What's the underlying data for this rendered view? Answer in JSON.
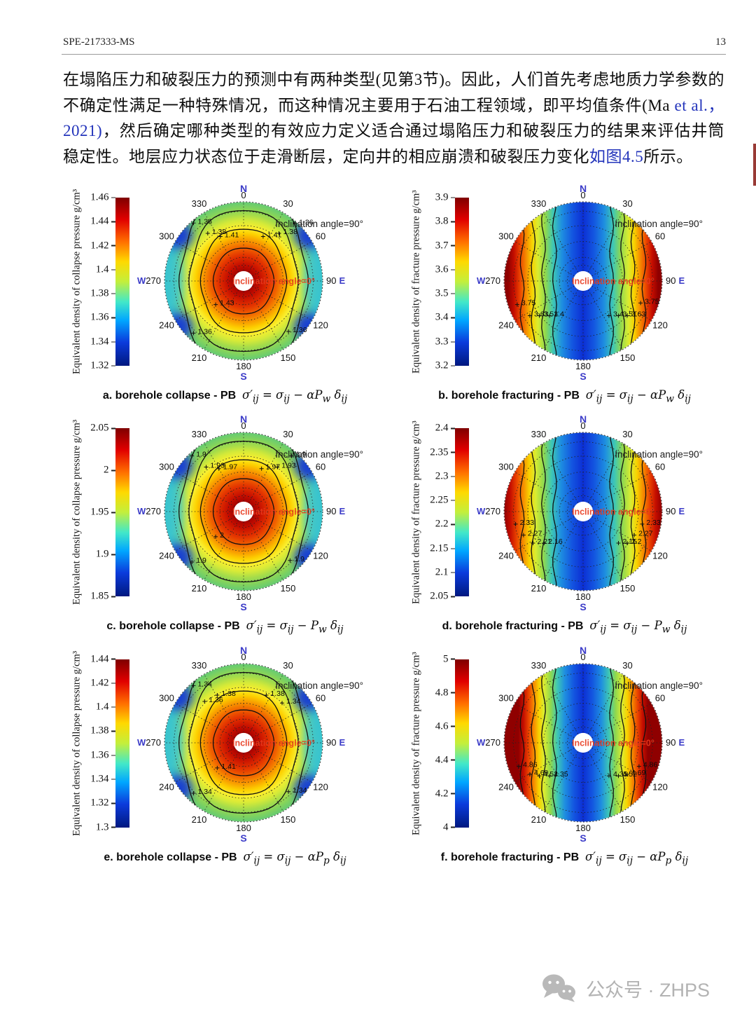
{
  "page": {
    "doc_id": "SPE-217333-MS",
    "page_number": "13"
  },
  "paragraph": {
    "segments": [
      {
        "text": "在塌陷压力和破裂压力的预测中有两种类型(见第3节)。因此，人们首先考虑地质力学参数的不确定性满足一种特殊情况，而这种情况主要用于石油工程领域，即平均值条件(Ma ",
        "link": false
      },
      {
        "text": "et al.， 2021)",
        "link": true
      },
      {
        "text": "，然后确定哪种类型的有效应力定义适合通过塌陷压力和破裂压力的结果来评估井筒稳定性。地层应力状态位于走滑断层，定向井的相应崩溃和破裂压力变化",
        "link": false
      },
      {
        "text": "如图4.5",
        "link": true
      },
      {
        "text": "所示。",
        "link": false
      }
    ]
  },
  "footer": {
    "wechat_label": "公众号 · ZHPS"
  },
  "colors": {
    "link_blue": "#2334bb",
    "compass_blue": "#3b3bc8",
    "center_red": "#e8391d",
    "cyan_lens": "#2ec2e6",
    "blue_blob": "#1838d6",
    "jet_bar": [
      "#7f0000 0%",
      "#e10000 13%",
      "#ff6d00 26%",
      "#ffd900 38%",
      "#c3ef3c 50%",
      "#42e8c8 62%",
      "#00a6ff 73%",
      "#0b3bdc 86%",
      "#00187f 100%"
    ],
    "collapse_stops": [
      [
        "0%",
        "#700000"
      ],
      [
        "10%",
        "#9c0000"
      ],
      [
        "20%",
        "#c40d00"
      ],
      [
        "32%",
        "#e23100"
      ],
      [
        "42%",
        "#f06000"
      ],
      [
        "52%",
        "#f89c00"
      ],
      [
        "60%",
        "#fdd000"
      ],
      [
        "68%",
        "#f9ee2e"
      ],
      [
        "76%",
        "#d6ea38"
      ],
      [
        "84%",
        "#a5dc4a"
      ],
      [
        "92%",
        "#83d35c"
      ],
      [
        "100%",
        "#63ca74"
      ]
    ],
    "fracture_stops": [
      [
        "0%",
        "#8f0000"
      ],
      [
        "4%",
        "#c40d00"
      ],
      [
        "8%",
        "#ea4400"
      ],
      [
        "12%",
        "#f58a00"
      ],
      [
        "16%",
        "#f8d200"
      ],
      [
        "20%",
        "#d8ec32"
      ],
      [
        "25%",
        "#8fd84e"
      ],
      [
        "30%",
        "#3fc8b4"
      ],
      [
        "36%",
        "#1e8ee0"
      ],
      [
        "43%",
        "#1355e0"
      ],
      [
        "50%",
        "#0c2fd4"
      ],
      [
        "57%",
        "#1355e0"
      ],
      [
        "64%",
        "#1e8ee0"
      ],
      [
        "70%",
        "#3fc8b4"
      ],
      [
        "75%",
        "#8fd84e"
      ],
      [
        "80%",
        "#d8ec32"
      ],
      [
        "84%",
        "#f8d200"
      ],
      [
        "88%",
        "#f58a00"
      ],
      [
        "92%",
        "#ea4400"
      ],
      [
        "96%",
        "#c40d00"
      ],
      [
        "100%",
        "#8f0000"
      ]
    ]
  },
  "chart_data": {
    "type": "heatmap",
    "subtype": "polar_contour_grid",
    "figure_reference": "图4.5",
    "common": {
      "compass": {
        "north": "N",
        "south": "S",
        "east": "E",
        "west": "W"
      },
      "angle_labels": [
        "0",
        "30",
        "60",
        "90",
        "120",
        "150",
        "180",
        "210",
        "240",
        "270",
        "300",
        "330"
      ],
      "west_label": "W270",
      "east_label": "90 E",
      "outer_annotation": "Inclination angle=90°",
      "center_annotation": "Inclination angle=0°",
      "grid": "dotted polar grid, 30° spokes, concentric circles"
    },
    "panels": [
      {
        "id": "a",
        "kind": "collapse",
        "pattern": "radial",
        "spread": 1.0,
        "caption": "a. borehole collapse - PB",
        "formula": "σ′_ij = σ_ij − αP_w δ_ij",
        "colorbar_label": "Equivalent density of collapse pressure g/cm³",
        "colorbar_ticks": [
          "1.46",
          "1.44",
          "1.42",
          "1.4",
          "1.38",
          "1.36",
          "1.34",
          "1.32"
        ],
        "range": [
          1.32,
          1.46
        ],
        "contour_levels": [
          1.36,
          1.38,
          1.41,
          1.43
        ],
        "contour_labels": [
          {
            "v": "1.36",
            "x": -0.58,
            "y": -0.75
          },
          {
            "v": "1.38",
            "x": -0.4,
            "y": -0.62
          },
          {
            "v": "1.41",
            "x": -0.24,
            "y": -0.58
          },
          {
            "v": "1.41",
            "x": 0.3,
            "y": -0.58
          },
          {
            "v": "1.38",
            "x": 0.5,
            "y": -0.62
          },
          {
            "v": "1.36",
            "x": 0.7,
            "y": -0.74
          },
          {
            "v": "1.43",
            "x": -0.3,
            "y": 0.28
          },
          {
            "v": "1.36",
            "x": -0.58,
            "y": 0.64
          },
          {
            "v": "1.36",
            "x": 0.62,
            "y": 0.62
          }
        ]
      },
      {
        "id": "b",
        "kind": "fracture",
        "pattern": "vertical-bands",
        "spread": 0.95,
        "caption": "b. borehole fracturing - PB",
        "formula": "σ′_ij = σ_ij − αP_w δ_ij",
        "colorbar_label": "Equivalent density of fracture pressure g/cm³",
        "colorbar_ticks": [
          "3.9",
          "3.8",
          "3.7",
          "3.6",
          "3.5",
          "3.4",
          "3.3",
          "3.2"
        ],
        "range": [
          3.2,
          3.9
        ],
        "contour_levels": [
          3.4,
          3.51,
          3.63,
          3.75
        ],
        "contour_labels": [
          {
            "v": "3.75",
            "x": -0.78,
            "y": 0.28
          },
          {
            "v": "3.63",
            "x": -0.62,
            "y": 0.42
          },
          {
            "v": "3.51",
            "x": -0.5,
            "y": 0.42
          },
          {
            "v": "3.4",
            "x": -0.37,
            "y": 0.42
          },
          {
            "v": "3.4",
            "x": 0.38,
            "y": 0.42
          },
          {
            "v": "3.51",
            "x": 0.5,
            "y": 0.42
          },
          {
            "v": "3.63",
            "x": 0.61,
            "y": 0.42
          },
          {
            "v": "3.75",
            "x": 0.78,
            "y": 0.26
          }
        ]
      },
      {
        "id": "c",
        "kind": "collapse",
        "pattern": "radial",
        "spread": 1.0,
        "caption": "c. borehole collapse - PB",
        "formula": "σ′_ij = σ_ij − P_w δ_ij",
        "colorbar_label": "Equivalent density of collapse pressure g/cm³",
        "colorbar_ticks": [
          "2.05",
          "2",
          "1.95",
          "1.9",
          "1.85"
        ],
        "range": [
          1.85,
          2.05
        ],
        "contour_levels": [
          1.9,
          1.93,
          1.97,
          2
        ],
        "contour_labels": [
          {
            "v": "1.9",
            "x": -0.6,
            "y": -0.72
          },
          {
            "v": "1.93",
            "x": -0.42,
            "y": -0.58
          },
          {
            "v": "1.97",
            "x": -0.26,
            "y": -0.56
          },
          {
            "v": "1.97",
            "x": 0.28,
            "y": -0.56
          },
          {
            "v": "1.93",
            "x": 0.48,
            "y": -0.58
          },
          {
            "v": "1.9",
            "x": 0.66,
            "y": -0.72
          },
          {
            "v": "2",
            "x": -0.3,
            "y": 0.3
          },
          {
            "v": "1.9",
            "x": -0.6,
            "y": 0.62
          },
          {
            "v": "1.9",
            "x": 0.64,
            "y": 0.6
          }
        ]
      },
      {
        "id": "d",
        "kind": "fracture",
        "pattern": "vertical-bands",
        "spread": 1.0,
        "caption": "d. borehole fracturing - PB",
        "formula": "σ′_ij = σ_ij − P_w δ_ij",
        "colorbar_label": "Equivalent density of fracture pressure g/cm³",
        "colorbar_ticks": [
          "2.4",
          "2.35",
          "2.3",
          "2.25",
          "2.2",
          "2.15",
          "2.1",
          "2.05"
        ],
        "range": [
          2.05,
          2.4
        ],
        "contour_levels": [
          2.15,
          2.16,
          2.2,
          2.21,
          2.27,
          2.33
        ],
        "contour_labels": [
          {
            "v": "2.33",
            "x": -0.8,
            "y": 0.14
          },
          {
            "v": "2.27",
            "x": -0.7,
            "y": 0.28
          },
          {
            "v": "2.21",
            "x": -0.58,
            "y": 0.38
          },
          {
            "v": "2.16",
            "x": -0.44,
            "y": 0.38
          },
          {
            "v": "2.15",
            "x": 0.5,
            "y": 0.38
          },
          {
            "v": "2.2",
            "x": 0.61,
            "y": 0.38
          },
          {
            "v": "2.27",
            "x": 0.7,
            "y": 0.28
          },
          {
            "v": "2.33",
            "x": 0.8,
            "y": 0.14
          }
        ]
      },
      {
        "id": "e",
        "kind": "collapse",
        "pattern": "radial",
        "spread": 1.0,
        "caption": "e. borehole collapse - PB",
        "formula": "σ′_ij = σ_ij − αP_p δ_ij",
        "colorbar_label": "Equivalent density of collapse pressure g/cm³",
        "colorbar_ticks": [
          "1.44",
          "1.42",
          "1.4",
          "1.38",
          "1.36",
          "1.34",
          "1.32",
          "1.3"
        ],
        "range": [
          1.3,
          1.44
        ],
        "contour_levels": [
          1.34,
          1.36,
          1.38,
          1.41
        ],
        "contour_labels": [
          {
            "v": "1.34",
            "x": -0.58,
            "y": -0.74
          },
          {
            "v": "1.38",
            "x": -0.28,
            "y": -0.62
          },
          {
            "v": "1.36",
            "x": -0.44,
            "y": -0.54
          },
          {
            "v": "1.38",
            "x": 0.34,
            "y": -0.62
          },
          {
            "v": "1.34",
            "x": 0.54,
            "y": -0.52
          },
          {
            "v": "1.41",
            "x": -0.28,
            "y": 0.3
          },
          {
            "v": "1.34",
            "x": -0.58,
            "y": 0.62
          },
          {
            "v": "1.34",
            "x": 0.62,
            "y": 0.6
          }
        ]
      },
      {
        "id": "f",
        "kind": "fracture",
        "pattern": "vertical-bands",
        "spread": 0.82,
        "caption": "f. borehole fracturing - PB",
        "formula": "σ′_ij = σ_ij − αP_p δ_ij",
        "colorbar_label": "Equivalent density of fracture pressure g/cm³",
        "colorbar_ticks": [
          "5",
          "4.8",
          "4.6",
          "4.4",
          "4.2",
          "4"
        ],
        "range": [
          4,
          5
        ],
        "contour_levels": [
          4.35,
          4.52,
          4.69,
          4.86
        ],
        "contour_labels": [
          {
            "v": "4.86",
            "x": -0.76,
            "y": 0.28
          },
          {
            "v": "4.69",
            "x": -0.62,
            "y": 0.38
          },
          {
            "v": "4.52",
            "x": -0.5,
            "y": 0.4
          },
          {
            "v": "4.35",
            "x": -0.37,
            "y": 0.4
          },
          {
            "v": "4.35",
            "x": 0.38,
            "y": 0.4
          },
          {
            "v": "4.52",
            "x": 0.5,
            "y": 0.4
          },
          {
            "v": "4.69",
            "x": 0.61,
            "y": 0.38
          },
          {
            "v": "4.86",
            "x": 0.76,
            "y": 0.28
          }
        ]
      }
    ]
  }
}
